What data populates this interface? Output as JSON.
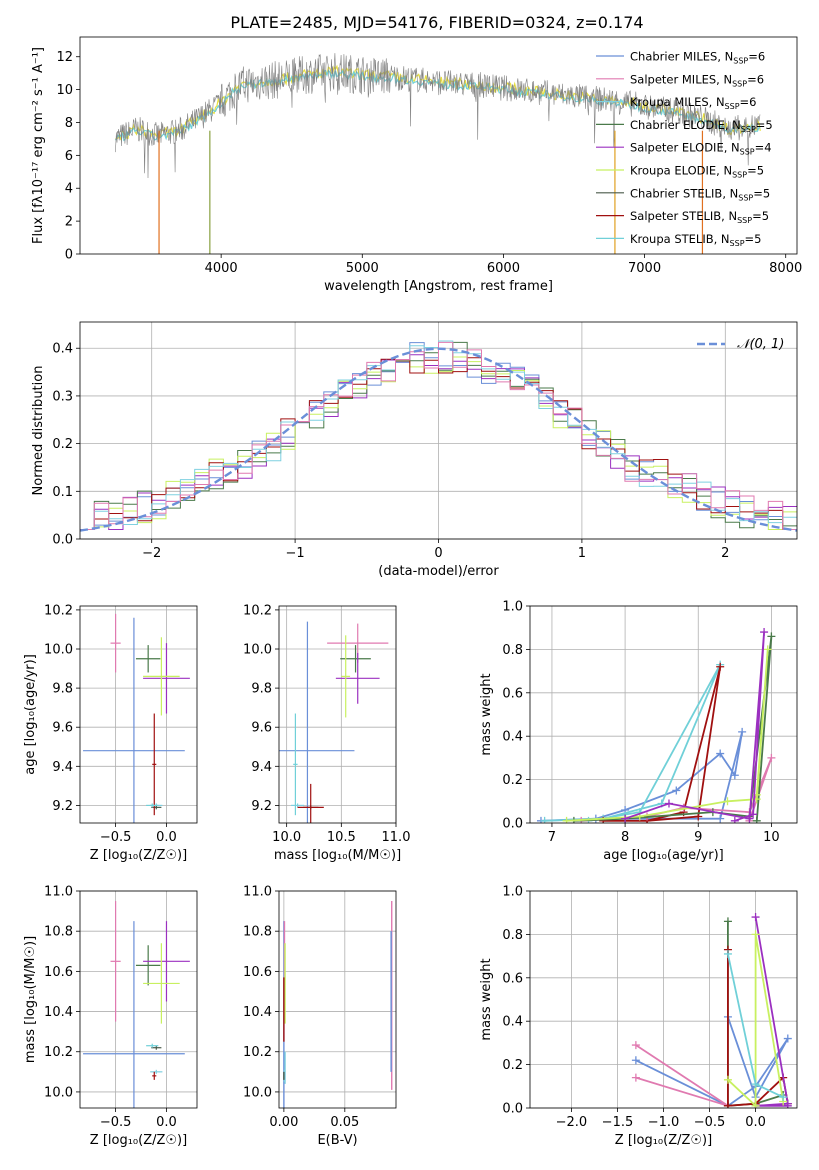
{
  "figure_title": "PLATE=2485, MJD=54176, FIBERID=0324, z=0.174",
  "series_colors": [
    "#6a8fd8",
    "#e07ab0",
    "#7fd0e0",
    "#4a7a4a",
    "#9b30c0",
    "#c8f060",
    "#4a5a4a",
    "#a01010",
    "#70d0d8"
  ],
  "tick_color": "#000000",
  "grid_color": "#b0b0b0",
  "chart_data": [
    {
      "id": "spectrum",
      "type": "line",
      "xlabel": "wavelength [Angstrom, rest frame]",
      "ylabel": "Flux [fλ10⁻¹⁷ erg cm⁻² s⁻¹ A⁻¹]",
      "xlim": [
        3000,
        8080
      ],
      "ylim": [
        0,
        13.2
      ],
      "xticks": [
        4000,
        5000,
        6000,
        7000,
        8000
      ],
      "yticks": [
        0,
        2,
        4,
        6,
        8,
        10,
        12
      ],
      "grid": false,
      "legend_placement": "right",
      "legend": [
        "Chabrier MILES, N_SSP=6",
        "Salpeter MILES, N_SSP=6",
        "Kroupa MILES, N_SSP=6",
        "Chabrier ELODIE, N_SSP=5",
        "Salpeter ELODIE, N_SSP=4",
        "Kroupa ELODIE, N_SSP=5",
        "Chabrier STELIB, N_SSP=5",
        "Salpeter STELIB, N_SSP=5",
        "Kroupa STELIB, N_SSP=5"
      ],
      "data_envelope": {
        "x": [
          3250,
          3400,
          3550,
          3700,
          3800,
          3900,
          4000,
          4100,
          4200,
          4400,
          4600,
          4800,
          5000,
          5200,
          5400,
          5600,
          5800,
          6000,
          6200,
          6400,
          6600,
          6800,
          7000,
          7200,
          7400,
          7600,
          7800
        ],
        "y": [
          7.0,
          7.6,
          7.2,
          7.5,
          8.0,
          8.6,
          9.2,
          10.1,
          10.4,
          10.6,
          10.9,
          11.1,
          10.9,
          10.8,
          10.6,
          10.4,
          10.3,
          10.1,
          9.9,
          9.7,
          9.5,
          9.3,
          9.0,
          8.7,
          8.3,
          7.6,
          7.8
        ]
      }
    },
    {
      "id": "residuals",
      "type": "histogram",
      "xlabel": "(data-model)/error",
      "ylabel": "Normed distribution",
      "xlim": [
        -2.5,
        2.5
      ],
      "ylim": [
        0,
        0.455
      ],
      "xticks": [
        -2,
        -1,
        0,
        1,
        2
      ],
      "yticks": [
        0.0,
        0.1,
        0.2,
        0.3,
        0.4
      ],
      "grid": true,
      "legend": [
        "𝒩(0, 1)"
      ],
      "legend_placement": "top-right",
      "curve": "normal pdf, mean 0, sigma 1"
    },
    {
      "id": "z_age",
      "type": "scatter-errorbar",
      "xlabel": "Z [log₁₀(Z/Z☉)]",
      "ylabel": "age  [log₁₀(age/yr)]",
      "xlim": [
        -0.85,
        0.3
      ],
      "ylim": [
        9.11,
        10.22
      ],
      "xticks": [
        -0.5,
        0.0
      ],
      "yticks": [
        9.2,
        9.4,
        9.6,
        9.8,
        10.0,
        10.2
      ],
      "grid": true,
      "points": [
        {
          "x": -0.32,
          "xerr": 0.5,
          "y": 9.48,
          "yerr": 0.68
        },
        {
          "x": -0.5,
          "xerr": 0.05,
          "y": 10.03,
          "yerr": 0.15
        },
        {
          "x": -0.1,
          "xerr": 0.06,
          "y": 9.2,
          "yerr": 0.01
        },
        {
          "x": -0.18,
          "xerr": 0.12,
          "y": 9.95,
          "yerr": 0.07
        },
        {
          "x": 0.0,
          "xerr": 0.23,
          "y": 9.85,
          "yerr": 0.18
        },
        {
          "x": -0.05,
          "xerr": 0.18,
          "y": 9.86,
          "yerr": 0.2
        },
        {
          "x": -0.1,
          "xerr": 0.05,
          "y": 9.19,
          "yerr": 0.01
        },
        {
          "x": -0.12,
          "xerr": 0.02,
          "y": 9.41,
          "yerr": 0.26
        },
        {
          "x": -0.14,
          "xerr": 0.06,
          "y": 9.2,
          "yerr": 0.01
        },
        {
          "x": -0.38,
          "xerr": 0.23,
          "y": 10.05,
          "yerr": 0.11
        }
      ]
    },
    {
      "id": "mass_age",
      "type": "scatter-errorbar",
      "xlabel": "mass [log₁₀(M/M☉)]",
      "ylabel": "",
      "xlim": [
        9.93,
        11.0
      ],
      "ylim": [
        9.11,
        10.22
      ],
      "xticks": [
        10.0,
        10.5,
        11.0
      ],
      "yticks": [
        9.2,
        9.4,
        9.6,
        9.8,
        10.0,
        10.2
      ],
      "grid": true,
      "points": [
        {
          "x": 10.19,
          "xerr": 0.43,
          "y": 9.48,
          "yerr": 0.66
        },
        {
          "x": 10.65,
          "xerr": 0.28,
          "y": 10.03,
          "yerr": 0.1
        },
        {
          "x": 10.1,
          "xerr": 0.06,
          "y": 9.2,
          "yerr": 0.01
        },
        {
          "x": 10.63,
          "xerr": 0.14,
          "y": 9.95,
          "yerr": 0.07
        },
        {
          "x": 10.65,
          "xerr": 0.2,
          "y": 9.85,
          "yerr": 0.13
        },
        {
          "x": 10.54,
          "xerr": 0.04,
          "y": 9.86,
          "yerr": 0.21
        },
        {
          "x": 10.22,
          "xerr": 0.07,
          "y": 9.19,
          "yerr": 0.01
        },
        {
          "x": 10.22,
          "xerr": 0.12,
          "y": 9.19,
          "yerr": 0.12
        },
        {
          "x": 10.08,
          "xerr": 0.02,
          "y": 9.41,
          "yerr": 0.26
        },
        {
          "x": 10.55,
          "xerr": 0.09,
          "y": 10.05,
          "yerr": 0.09
        }
      ]
    },
    {
      "id": "weight_age",
      "type": "line",
      "xlabel": "age  [log₁₀(age/yr)]",
      "ylabel": "mass weight",
      "xlim": [
        6.7,
        10.35
      ],
      "ylim": [
        0,
        1.0
      ],
      "xticks": [
        7,
        8,
        9,
        10
      ],
      "yticks": [
        0.0,
        0.2,
        0.4,
        0.6,
        0.8,
        1.0
      ],
      "grid": true,
      "series": [
        {
          "color_index": 0,
          "x": [
            6.85,
            7.6,
            8.0,
            8.7,
            9.3,
            9.5,
            9.6,
            9.3,
            8.0
          ],
          "y": [
            0.01,
            0.02,
            0.06,
            0.15,
            0.32,
            0.22,
            0.42,
            0.02,
            0.02
          ]
        },
        {
          "color_index": 8,
          "x": [
            6.9,
            7.7,
            8.5,
            9.3,
            8.2,
            7.5
          ],
          "y": [
            0.01,
            0.02,
            0.09,
            0.73,
            0.05,
            0.01
          ]
        },
        {
          "color_index": 7,
          "x": [
            7.7,
            8.3,
            8.8,
            9.3,
            9.0,
            8.3
          ],
          "y": [
            0.01,
            0.01,
            0.05,
            0.72,
            0.03,
            0.01
          ]
        },
        {
          "color_index": 1,
          "x": [
            7.4,
            8.3,
            8.8,
            9.7,
            10.0,
            9.7
          ],
          "y": [
            0.01,
            0.03,
            0.07,
            0.05,
            0.3,
            0.01
          ]
        },
        {
          "color_index": 3,
          "x": [
            7.3,
            8.0,
            9.2,
            9.7,
            10.0,
            9.8
          ],
          "y": [
            0.01,
            0.02,
            0.05,
            0.03,
            0.86,
            0.01
          ]
        },
        {
          "color_index": 5,
          "x": [
            7.2,
            8.2,
            9.4,
            9.8,
            9.95,
            9.8
          ],
          "y": [
            0.01,
            0.03,
            0.1,
            0.11,
            0.8,
            0.13
          ]
        },
        {
          "color_index": 4,
          "x": [
            8.0,
            8.6,
            9.7,
            9.9,
            9.75,
            9.5
          ],
          "y": [
            0.02,
            0.09,
            0.02,
            0.88,
            0.04,
            0.01
          ]
        },
        {
          "color_index": 10,
          "x": [
            7.8,
            8.6,
            9.6,
            10.2,
            10.15,
            9.9
          ],
          "y": [
            0.01,
            0.08,
            0.19,
            0.62,
            0.55,
            0.01
          ]
        }
      ]
    },
    {
      "id": "z_mass",
      "type": "scatter-errorbar",
      "xlabel": "Z [log₁₀(Z/Z☉)]",
      "ylabel": "mass [log₁₀(M/M☉)]",
      "xlim": [
        -0.85,
        0.3
      ],
      "ylim": [
        9.92,
        11.0
      ],
      "xticks": [
        -0.5,
        0.0
      ],
      "yticks": [
        10.0,
        10.2,
        10.4,
        10.6,
        10.8,
        11.0
      ],
      "grid": true,
      "points": [
        {
          "x": -0.32,
          "xerr": 0.5,
          "y": 10.19,
          "yerr": 0.66
        },
        {
          "x": -0.5,
          "xerr": 0.05,
          "y": 10.65,
          "yerr": 0.3
        },
        {
          "x": -0.1,
          "xerr": 0.06,
          "y": 10.1,
          "yerr": 0.01
        },
        {
          "x": -0.18,
          "xerr": 0.12,
          "y": 10.63,
          "yerr": 0.1
        },
        {
          "x": 0.0,
          "xerr": 0.23,
          "y": 10.65,
          "yerr": 0.2
        },
        {
          "x": -0.05,
          "xerr": 0.18,
          "y": 10.54,
          "yerr": 0.2
        },
        {
          "x": -0.1,
          "xerr": 0.05,
          "y": 10.22,
          "yerr": 0.01
        },
        {
          "x": -0.12,
          "xerr": 0.02,
          "y": 10.08,
          "yerr": 0.02
        },
        {
          "x": -0.14,
          "xerr": 0.06,
          "y": 10.23,
          "yerr": 0.01
        },
        {
          "x": -0.38,
          "xerr": 0.23,
          "y": 10.55,
          "yerr": 0.09
        }
      ]
    },
    {
      "id": "ebv_mass",
      "type": "errorbar",
      "xlabel": "E(B-V)",
      "ylabel": "",
      "xlim": [
        -0.004,
        0.092
      ],
      "ylim": [
        9.92,
        11.0
      ],
      "xticks": [
        0.0,
        0.05
      ],
      "xtick_labels": [
        "0.00",
        "0.05"
      ],
      "yticks": [
        10.0,
        10.2,
        10.4,
        10.6,
        10.8,
        11.0
      ],
      "grid": true,
      "points": [
        {
          "x": 0.0,
          "y": 10.19,
          "yerr": 0.66,
          "color_index": 0
        },
        {
          "x": 0.0,
          "y": 10.65,
          "yerr": 0.2,
          "color_index": 1
        },
        {
          "x": 0.0,
          "y": 10.54,
          "yerr": 0.2,
          "color_index": 5
        },
        {
          "x": 0.0,
          "y": 10.41,
          "yerr": 0.16,
          "color_index": 7
        },
        {
          "x": 0.0,
          "y": 10.08,
          "yerr": 0.03,
          "color_index": 8
        },
        {
          "x": 0.0,
          "y": 10.12,
          "yerr": 0.08,
          "color_index": 2
        },
        {
          "x": 0.0,
          "y": 10.08,
          "yerr": 0.02,
          "color_index": 6
        },
        {
          "x": 0.088,
          "y": 10.48,
          "yerr": 0.47,
          "color_index": 1
        },
        {
          "x": 0.088,
          "y": 10.6,
          "yerr": 0.12,
          "color_index": 10
        },
        {
          "x": 0.088,
          "y": 10.45,
          "yerr": 0.35,
          "color_index": 0
        }
      ]
    },
    {
      "id": "weight_z",
      "type": "line",
      "xlabel": "Z [log₁₀(Z/Z☉)]",
      "ylabel": "mass weight",
      "xlim": [
        -2.45,
        0.45
      ],
      "ylim": [
        0,
        1.0
      ],
      "xticks": [
        -2.0,
        -1.5,
        -1.0,
        -0.5,
        0.0
      ],
      "yticks": [
        0.0,
        0.2,
        0.4,
        0.6,
        0.8,
        1.0
      ],
      "grid": true,
      "series": [
        {
          "color_index": 0,
          "x": [
            -1.3,
            -0.3,
            0.0,
            0.35,
            0.0,
            -0.3
          ],
          "y": [
            0.22,
            0.01,
            0.1,
            0.32,
            0.05,
            0.42
          ]
        },
        {
          "color_index": 1,
          "x": [
            -1.3,
            -0.3,
            -1.3
          ],
          "y": [
            0.29,
            0.01,
            0.14
          ]
        },
        {
          "color_index": 10,
          "x": [
            -2.35,
            -0.3,
            -0.3,
            0.0
          ],
          "y": [
            0.17,
            0.01,
            0.62,
            0.01
          ]
        },
        {
          "color_index": 3,
          "x": [
            -0.3,
            -0.3,
            0.0,
            0.3
          ],
          "y": [
            0.86,
            0.01,
            0.02,
            0.06
          ]
        },
        {
          "color_index": 7,
          "x": [
            -0.3,
            -0.3,
            0.0,
            0.3,
            0.35
          ],
          "y": [
            0.73,
            0.01,
            0.02,
            0.14,
            0.02
          ]
        },
        {
          "color_index": 4,
          "x": [
            0.0,
            0.35,
            0.0,
            0.35
          ],
          "y": [
            0.88,
            0.02,
            0.01,
            0.01
          ]
        },
        {
          "color_index": 5,
          "x": [
            -0.3,
            0.0,
            0.0,
            0.3
          ],
          "y": [
            0.13,
            0.01,
            0.8,
            0.03
          ]
        },
        {
          "color_index": 8,
          "x": [
            -0.3,
            0.0,
            0.3
          ],
          "y": [
            0.71,
            0.11,
            0.05
          ]
        }
      ]
    }
  ]
}
